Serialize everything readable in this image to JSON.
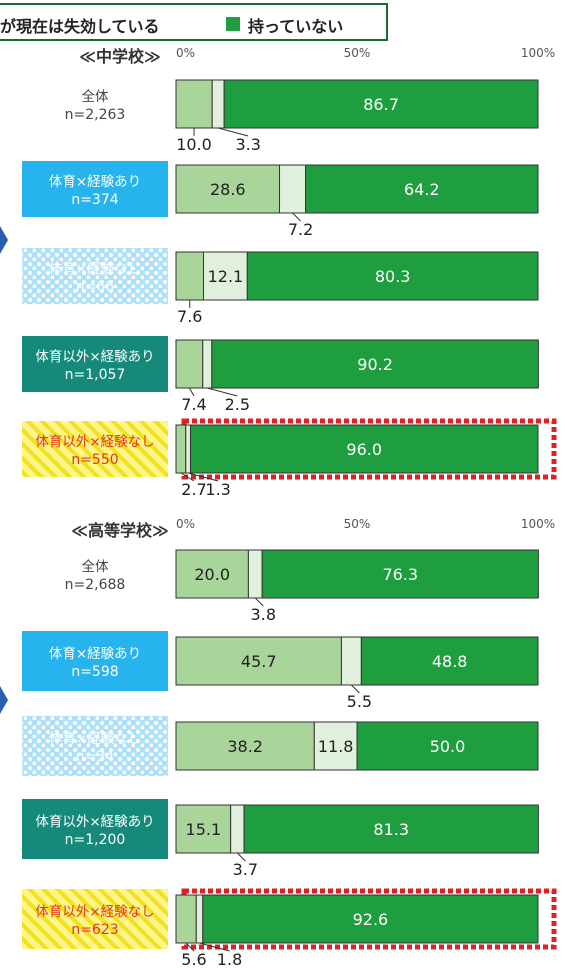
{
  "legend": {
    "partial_label": "が現在は失効している",
    "none_label": "持っていない",
    "colors": {
      "partial": "#e1f0dc",
      "none": "#1f9e3f",
      "first": "#a9d49a"
    }
  },
  "chart_data": [
    {
      "type": "bar",
      "orientation": "horizontal",
      "stacked": true,
      "title": "≪中学校≫",
      "axis_ticks": [
        "0%",
        "50%",
        "100%"
      ],
      "xlim": [
        0,
        100
      ],
      "categories": [
        {
          "label": "全体",
          "n": "n=2,263",
          "style": "plain",
          "highlight": false
        },
        {
          "label": "体育×経験あり",
          "n": "n=374",
          "style": "blue",
          "highlight": false
        },
        {
          "label": "体育×経験なし",
          "n": "n=66",
          "style": "dots",
          "highlight": false
        },
        {
          "label": "体育以外×経験あり",
          "n": "n=1,057",
          "style": "teal",
          "highlight": false
        },
        {
          "label": "体育以外×経験なし",
          "n": "n=550",
          "style": "yellow",
          "highlight": true
        }
      ],
      "series": [
        {
          "values": [
            10.0,
            28.6,
            7.6,
            7.4,
            2.7
          ]
        },
        {
          "values": [
            3.3,
            7.2,
            12.1,
            2.5,
            1.3
          ]
        },
        {
          "name": "持っていない",
          "values": [
            86.7,
            64.2,
            80.3,
            90.2,
            96.0
          ]
        }
      ],
      "labels": [
        [
          "10.0",
          "3.3",
          "86.7"
        ],
        [
          "28.6",
          "7.2",
          "64.2"
        ],
        [
          "7.6",
          "12.1",
          "80.3"
        ],
        [
          "7.4",
          "2.5",
          "90.2"
        ],
        [
          "2.7",
          "1.3",
          "96.0"
        ]
      ]
    },
    {
      "type": "bar",
      "orientation": "horizontal",
      "stacked": true,
      "title": "≪高等学校≫",
      "axis_ticks": [
        "0%",
        "50%",
        "100%"
      ],
      "xlim": [
        0,
        100
      ],
      "categories": [
        {
          "label": "全体",
          "n": "n=2,688",
          "style": "plain",
          "highlight": false
        },
        {
          "label": "体育×経験あり",
          "n": "n=598",
          "style": "blue",
          "highlight": false
        },
        {
          "label": "体育×経験なし",
          "n": "n=34",
          "style": "dots",
          "highlight": false
        },
        {
          "label": "体育以外×経験あり",
          "n": "n=1,200",
          "style": "teal",
          "highlight": false
        },
        {
          "label": "体育以外×経験なし",
          "n": "n=623",
          "style": "yellow",
          "highlight": true
        }
      ],
      "series": [
        {
          "values": [
            20.0,
            45.7,
            38.2,
            15.1,
            5.6
          ]
        },
        {
          "values": [
            3.8,
            5.5,
            11.8,
            3.7,
            1.8
          ]
        },
        {
          "name": "持っていない",
          "values": [
            76.3,
            48.8,
            50.0,
            81.3,
            92.6
          ]
        }
      ],
      "labels": [
        [
          "20.0",
          "3.8",
          "76.3"
        ],
        [
          "45.7",
          "5.5",
          "48.8"
        ],
        [
          "38.2",
          "11.8",
          "50.0"
        ],
        [
          "15.1",
          "3.7",
          "81.3"
        ],
        [
          "5.6",
          "1.8",
          "92.6"
        ]
      ]
    }
  ]
}
